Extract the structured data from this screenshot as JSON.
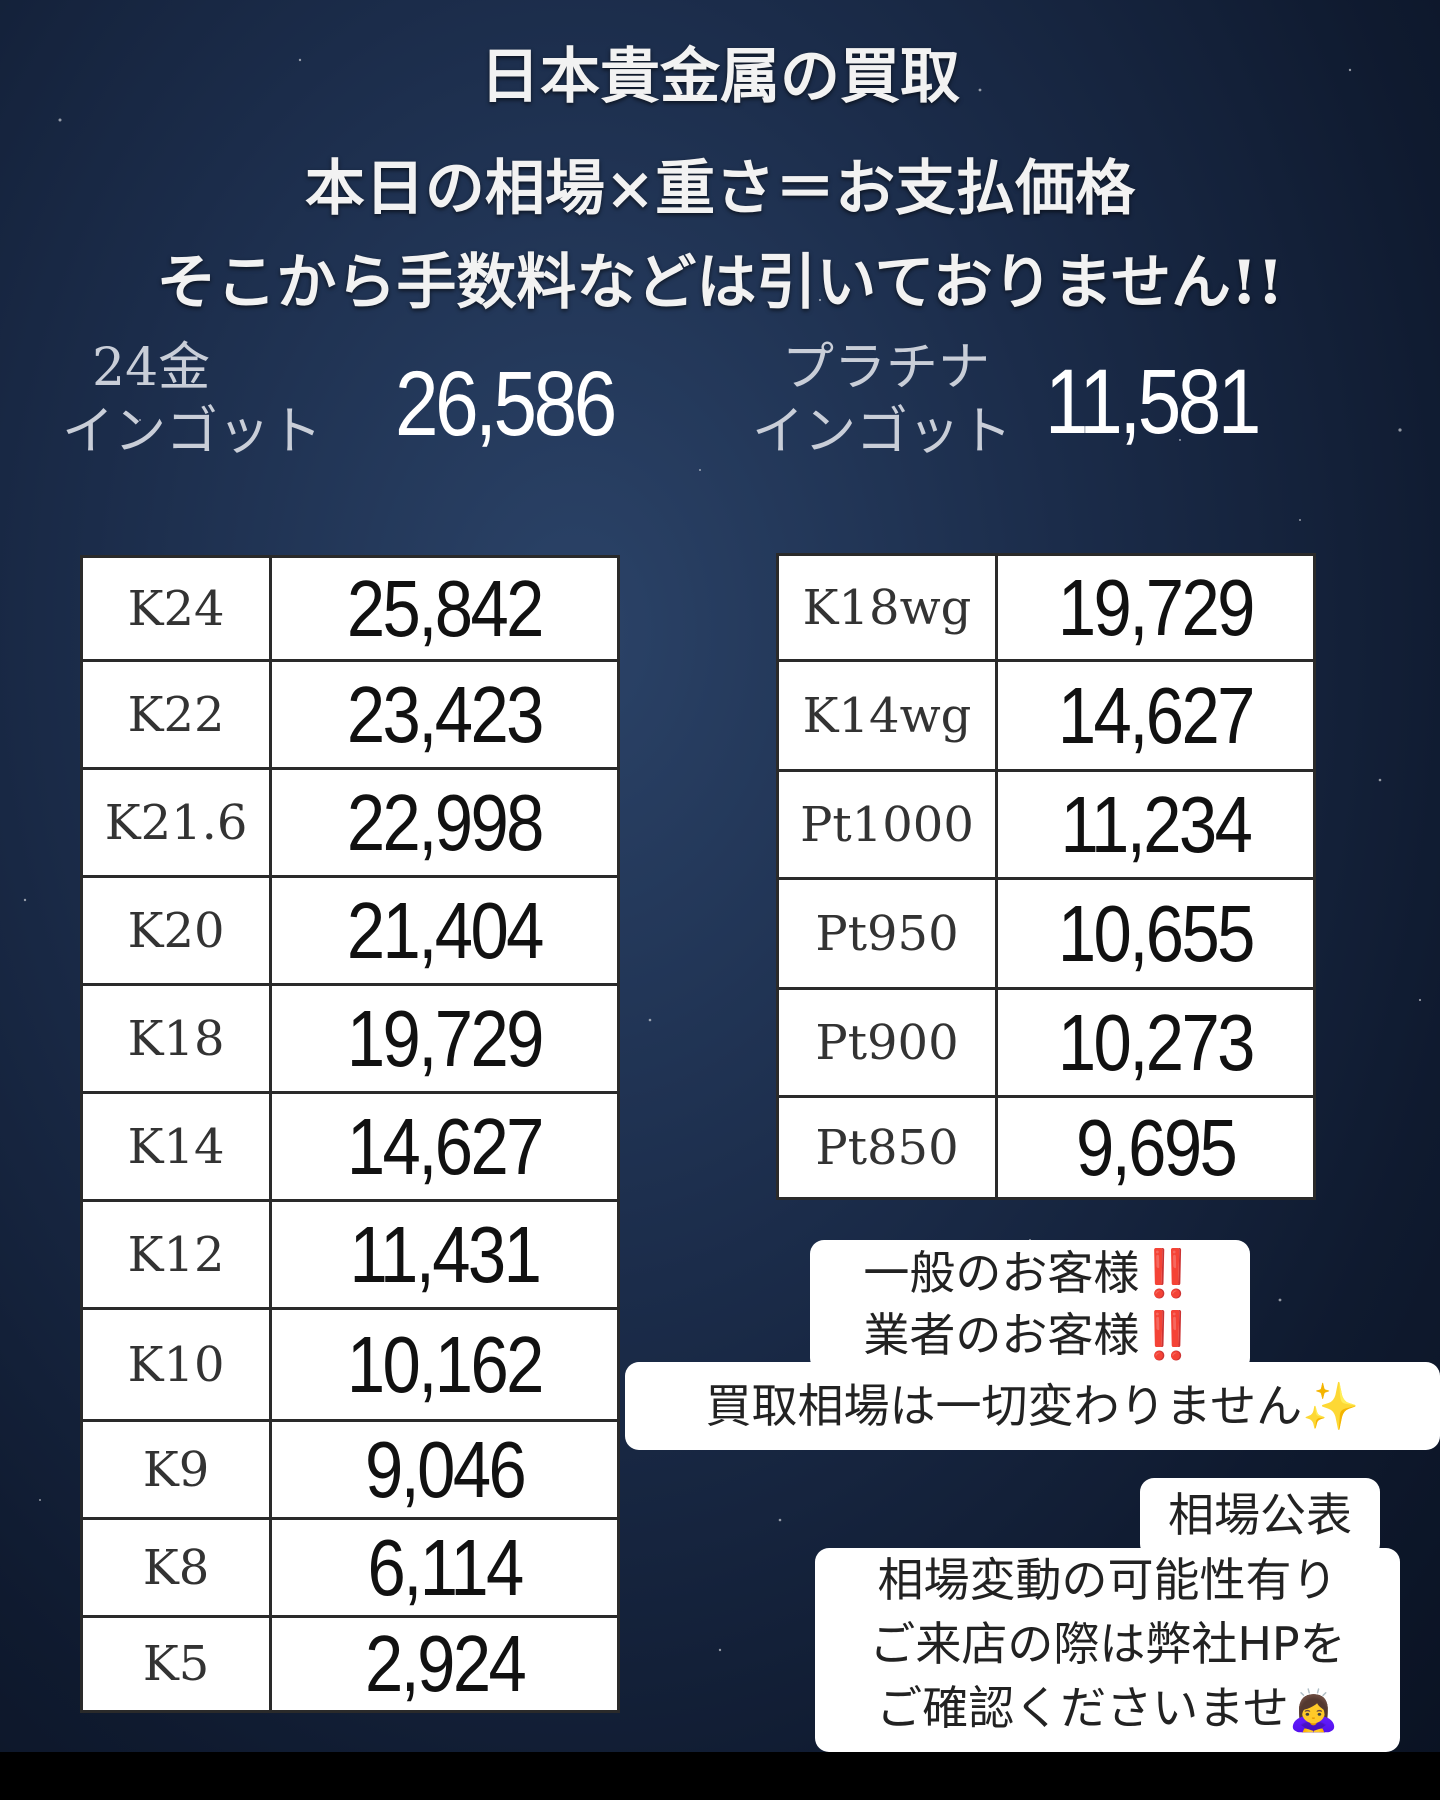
{
  "header": {
    "line1": "日本貴金属の買取",
    "line2": "本日の相場×重さ＝お支払価格",
    "line3": "そこから手数料などは引いておりません!!"
  },
  "ingots": {
    "gold": {
      "label_line1": "24金",
      "label_line2": "インゴット",
      "price": "26,586"
    },
    "platinum": {
      "label_line1": "プラチナ",
      "label_line2": "インゴット",
      "price": "11,581"
    }
  },
  "gold_table": [
    {
      "karat": "K24",
      "price": "25,842"
    },
    {
      "karat": "K22",
      "price": "23,423"
    },
    {
      "karat": "K21.6",
      "price": "22,998"
    },
    {
      "karat": "K20",
      "price": "21,404"
    },
    {
      "karat": "K18",
      "price": "19,729"
    },
    {
      "karat": "K14",
      "price": "14,627"
    },
    {
      "karat": "K12",
      "price": "11,431"
    },
    {
      "karat": "K10",
      "price": "10,162"
    },
    {
      "karat": "K9",
      "price": "9,046"
    },
    {
      "karat": "K8",
      "price": "6,114"
    },
    {
      "karat": "K5",
      "price": "2,924"
    }
  ],
  "white_table": [
    {
      "karat": "K18wg",
      "price": "19,729"
    },
    {
      "karat": "K14wg",
      "price": "14,627"
    },
    {
      "karat": "Pt1000",
      "price": "11,234"
    },
    {
      "karat": "Pt950",
      "price": "10,655"
    },
    {
      "karat": "Pt900",
      "price": "10,273"
    },
    {
      "karat": "Pt850",
      "price": "9,695"
    }
  ],
  "notice": {
    "line1": "一般のお客様",
    "line2": "業者のお客様",
    "line3": "買取相場は一切変わりません",
    "bang": "‼️",
    "sparkle": "✨"
  },
  "market_note": {
    "line1": "相場公表",
    "line2": "相場変動の可能性有り",
    "line3": "ご来店の際は弊社HPを",
    "line4": "ご確認くださいませ",
    "emoji": "🙇‍♀️"
  },
  "colors": {
    "background": "#1b2c4a",
    "header_text": "#f2f2f2",
    "ingot_label": "#c9ced8",
    "table_border": "#2a2a2a",
    "alert_red": "#e0202a"
  }
}
